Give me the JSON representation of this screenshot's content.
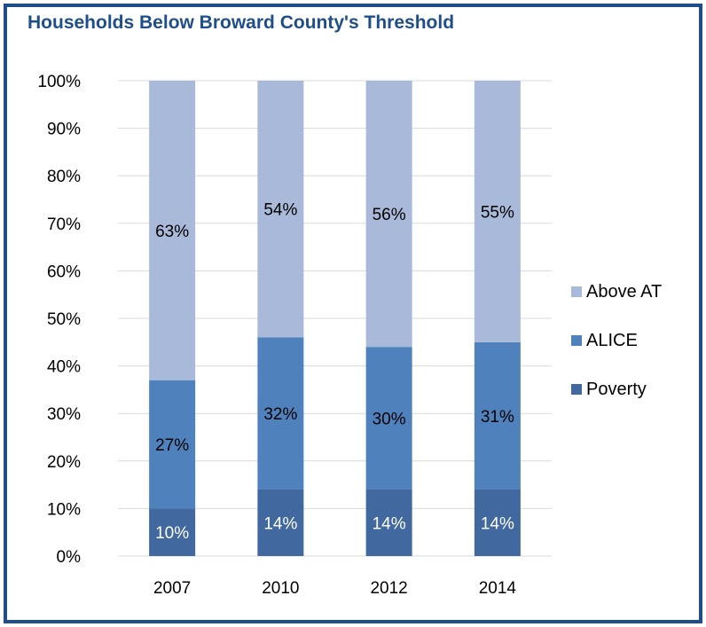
{
  "chart_data": {
    "type": "bar",
    "stacked": true,
    "title": "Households Below Broward County's Threshold",
    "categories": [
      "2007",
      "2010",
      "2012",
      "2014"
    ],
    "series": [
      {
        "name": "Poverty",
        "values": [
          10,
          14,
          14,
          14
        ],
        "labels": [
          "10%",
          "14%",
          "14%",
          "14%"
        ],
        "color": "#41699f",
        "label_color": "#ffffff"
      },
      {
        "name": "ALICE",
        "values": [
          27,
          32,
          30,
          31
        ],
        "labels": [
          "27%",
          "32%",
          "30%",
          "31%"
        ],
        "color": "#4f81bd",
        "label_color": "#000000"
      },
      {
        "name": "Above AT",
        "values": [
          63,
          54,
          56,
          55
        ],
        "labels": [
          "63%",
          "54%",
          "56%",
          "55%"
        ],
        "color": "#a9b9d9",
        "label_color": "#000000"
      }
    ],
    "yticks": [
      "0%",
      "10%",
      "20%",
      "30%",
      "40%",
      "50%",
      "60%",
      "70%",
      "80%",
      "90%",
      "100%"
    ],
    "ylim": [
      0,
      100
    ],
    "grid": true,
    "legend": {
      "placement": "right",
      "order": [
        "Above AT",
        "ALICE",
        "Poverty"
      ]
    },
    "frame_color": "#1f4e8c",
    "grid_color": "#d9d9d9"
  }
}
